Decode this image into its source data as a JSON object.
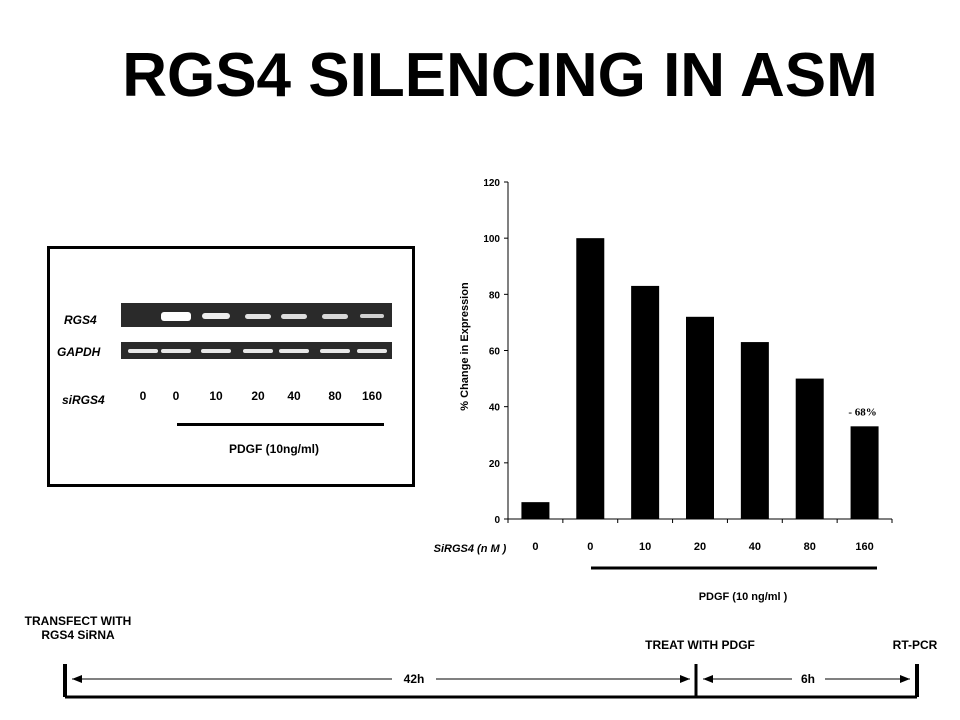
{
  "title": "RGS4 SILENCING IN ASM",
  "gel": {
    "row_labels": [
      "RGS4",
      "GAPDH"
    ],
    "lane_label": "siRGS4",
    "lanes": [
      "0",
      "0",
      "10",
      "20",
      "40",
      "80",
      "160"
    ],
    "treatment_label": "PDGF (10ng/ml)"
  },
  "chart_data": {
    "type": "bar",
    "categories": [
      "0",
      "0",
      "10",
      "20",
      "40",
      "80",
      "160"
    ],
    "values": [
      6,
      100,
      83,
      72,
      63,
      50,
      33
    ],
    "ylim": [
      0,
      120
    ],
    "yticks": [
      0,
      20,
      40,
      60,
      80,
      100,
      120
    ],
    "ylabel": "% Change in Expression",
    "xlabel": "SiRGS4 (n M )",
    "treatment_label": "PDGF (10 ng/ml )",
    "annotation": "- 68%",
    "bar_color": "#000000"
  },
  "timeline": {
    "transfect_line1": "TRANSFECT  WITH",
    "transfect_line2": "RGS4  SiRNA",
    "treat": "TREAT  WITH  PDGF",
    "rtpcr": "RT-PCR",
    "interval1": "42h",
    "interval2": "6h"
  }
}
